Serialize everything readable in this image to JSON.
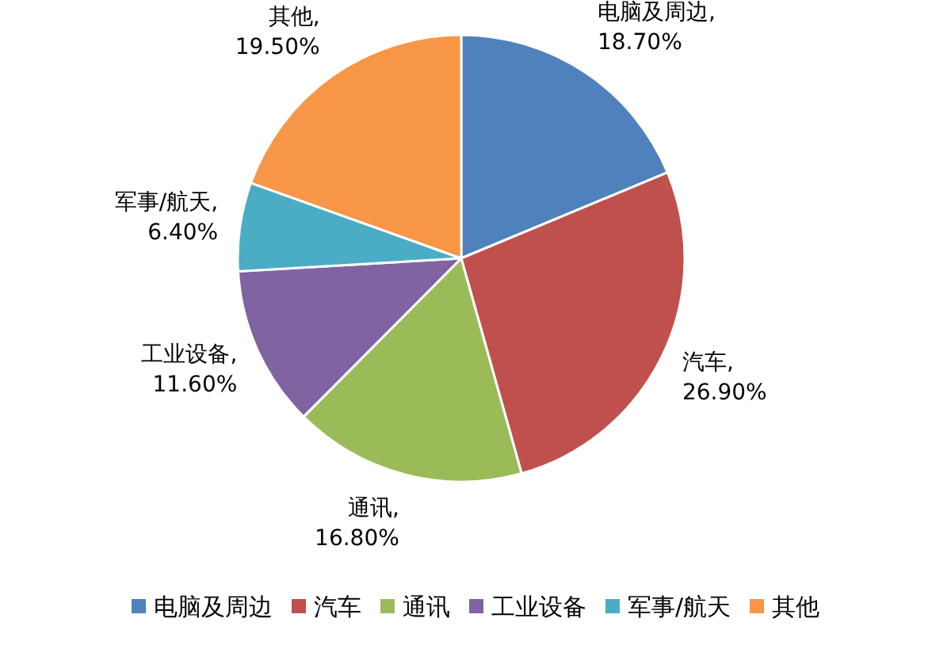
{
  "chart_data": {
    "type": "pie",
    "categories": [
      "电脑及周边",
      "汽车",
      "通讯",
      "工业设备",
      "军事/航天",
      "其他"
    ],
    "values": [
      18.7,
      26.9,
      16.8,
      11.6,
      6.4,
      19.5
    ],
    "colors": [
      "#4f81bd",
      "#c0504d",
      "#9bbb59",
      "#8064a2",
      "#4bacc6",
      "#f79646"
    ],
    "value_labels": [
      "电脑及周边, 18.70%",
      "汽车, 26.90%",
      "通讯, 16.80%",
      "工业设备, 11.60%",
      "军事/航天, 6.40%",
      "其他, 19.50%"
    ],
    "legend": "bottom"
  }
}
